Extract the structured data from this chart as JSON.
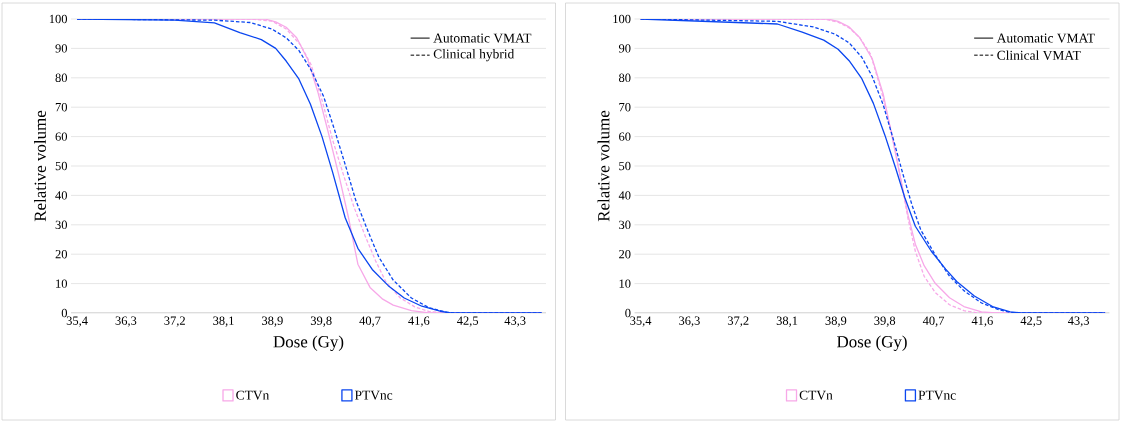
{
  "chart_data": [
    {
      "type": "line",
      "xlabel": "Dose (Gy)",
      "ylabel": "Relative volume",
      "xlim": [
        35.29,
        43.9
      ],
      "ylim": [
        0,
        100
      ],
      "xticks": [
        {
          "value": 35.4,
          "label": "35,4"
        },
        {
          "value": 36.285,
          "label": "36,3"
        },
        {
          "value": 37.17,
          "label": "37,2"
        },
        {
          "value": 38.055,
          "label": "38,1"
        },
        {
          "value": 38.94,
          "label": "38,9"
        },
        {
          "value": 39.825,
          "label": "39,8"
        },
        {
          "value": 40.71,
          "label": "40,7"
        },
        {
          "value": 41.595,
          "label": "41,6"
        },
        {
          "value": 42.48,
          "label": "42,5"
        },
        {
          "value": 43.34,
          "label": "43,3"
        }
      ],
      "yticks": [
        0,
        10,
        20,
        30,
        40,
        50,
        60,
        70,
        80,
        90,
        100
      ],
      "grid": "y",
      "legend": "bottom",
      "annotations": [
        "Automatic VMAT",
        "Clinical hybrid"
      ],
      "series": [
        {
          "name": "CTVn",
          "color": "#f7a8e8",
          "line_style": "solid",
          "x": [
            35.4,
            38.8,
            39.0,
            39.19,
            39.38,
            39.58,
            39.77,
            39.97,
            40.16,
            40.32,
            40.49,
            40.71,
            40.94,
            41.13,
            41.46,
            41.78,
            43.82
          ],
          "values": [
            100,
            100,
            99,
            97.2,
            93.6,
            86.3,
            74.8,
            60.2,
            45.7,
            32.4,
            16.6,
            8.7,
            4.7,
            2.7,
            0.8,
            0,
            0
          ]
        },
        {
          "color": "#f7a8e8",
          "line_style": "dashed",
          "x": [
            35.4,
            38.54,
            38.93,
            39.19,
            39.45,
            39.64,
            39.84,
            40.03,
            40.23,
            40.42,
            40.62,
            40.81,
            41.0,
            41.26,
            41.52,
            41.78,
            42.04,
            43.82
          ],
          "values": [
            100,
            100,
            99.3,
            96.6,
            91.2,
            84.5,
            72.4,
            59,
            46.9,
            36,
            26.3,
            17.8,
            10.5,
            5.1,
            2.1,
            0.5,
            0,
            0
          ]
        },
        {
          "name": "PTVnc",
          "color": "#0a46f0",
          "line_style": "solid",
          "x": [
            35.4,
            37.17,
            37.89,
            38.35,
            38.74,
            39.0,
            39.19,
            39.42,
            39.63,
            39.84,
            40.03,
            40.26,
            40.49,
            40.75,
            41.04,
            41.33,
            41.65,
            41.98,
            42.17,
            43.82
          ],
          "values": [
            100,
            99.6,
            98.7,
            95.4,
            93,
            90,
            85.7,
            79.6,
            71,
            60,
            48,
            32.4,
            22,
            14.8,
            9.3,
            5.1,
            2.3,
            0.6,
            0,
            0
          ]
        },
        {
          "color": "#0a46f0",
          "line_style": "dashed",
          "x": [
            35.4,
            37.89,
            38.54,
            38.93,
            39.19,
            39.42,
            39.64,
            39.87,
            40.06,
            40.26,
            40.45,
            40.68,
            40.87,
            41.13,
            41.46,
            41.78,
            42.11,
            42.3,
            43.82
          ],
          "values": [
            100,
            99.6,
            98.8,
            96.6,
            93.6,
            89.3,
            82.7,
            73.6,
            62.7,
            50.5,
            38.4,
            27.5,
            19,
            11.2,
            5.1,
            1.8,
            0.2,
            0,
            0
          ]
        }
      ]
    },
    {
      "type": "line",
      "xlabel": "Dose (Gy)",
      "ylabel": "Relative volume",
      "xlim": [
        35.29,
        43.9
      ],
      "ylim": [
        0,
        100
      ],
      "xticks": [
        {
          "value": 35.4,
          "label": "35,4"
        },
        {
          "value": 36.285,
          "label": "36,3"
        },
        {
          "value": 37.17,
          "label": "37,2"
        },
        {
          "value": 38.055,
          "label": "38,1"
        },
        {
          "value": 38.94,
          "label": "38,9"
        },
        {
          "value": 39.825,
          "label": "39,8"
        },
        {
          "value": 40.71,
          "label": "40,7"
        },
        {
          "value": 41.595,
          "label": "41,6"
        },
        {
          "value": 42.48,
          "label": "42,5"
        },
        {
          "value": 43.34,
          "label": "43,3"
        }
      ],
      "yticks": [
        0,
        10,
        20,
        30,
        40,
        50,
        60,
        70,
        80,
        90,
        100
      ],
      "grid": "y",
      "legend": "bottom",
      "annotations": [
        "Automatic VMAT",
        "Clinical VMAT"
      ],
      "series": [
        {
          "name": "CTVn",
          "color": "#f7a8e8",
          "line_style": "solid",
          "x": [
            35.4,
            38.79,
            38.98,
            39.18,
            39.37,
            39.6,
            39.8,
            39.96,
            40.12,
            40.25,
            40.38,
            40.54,
            40.74,
            41.0,
            41.26,
            41.58,
            41.84,
            43.82
          ],
          "values": [
            100,
            100,
            99.2,
            97.3,
            93.7,
            86.4,
            74.3,
            59.8,
            45.2,
            33.1,
            23.4,
            16.1,
            10.1,
            5.2,
            2.2,
            0.4,
            0,
            0
          ]
        },
        {
          "color": "#f7a8e8",
          "line_style": "dashed",
          "x": [
            35.4,
            38.72,
            38.98,
            39.18,
            39.37,
            39.57,
            39.76,
            39.95,
            40.12,
            40.25,
            40.38,
            40.54,
            40.74,
            41.0,
            41.26,
            41.52,
            43.82
          ],
          "values": [
            100,
            100,
            98.9,
            97,
            93.7,
            88,
            75.8,
            61.5,
            45.2,
            31.9,
            21,
            12.5,
            7,
            2.8,
            0.8,
            0,
            0
          ]
        },
        {
          "name": "PTVnc",
          "color": "#0a46f0",
          "line_style": "solid",
          "x": [
            35.4,
            37.88,
            38.33,
            38.72,
            38.98,
            39.18,
            39.41,
            39.62,
            39.83,
            40.02,
            40.19,
            40.38,
            40.67,
            40.93,
            41.13,
            41.45,
            41.78,
            42.1,
            42.3,
            43.82
          ],
          "values": [
            100,
            98.3,
            95.5,
            92.8,
            89.7,
            85.8,
            79.7,
            71.3,
            60.4,
            49.5,
            39.2,
            29.5,
            21,
            14.9,
            10.7,
            5.8,
            2.2,
            0.4,
            0,
            0
          ]
        },
        {
          "color": "#0a46f0",
          "line_style": "dashed",
          "x": [
            35.4,
            37.88,
            38.53,
            38.92,
            39.18,
            39.41,
            39.6,
            39.8,
            39.99,
            40.15,
            40.32,
            40.48,
            40.74,
            41.0,
            41.26,
            41.58,
            41.91,
            42.17,
            43.82
          ],
          "values": [
            100,
            99.2,
            97.3,
            94.9,
            91.9,
            87,
            80.4,
            70.7,
            58.5,
            47.6,
            36.7,
            28.2,
            19.8,
            12.5,
            7.6,
            3.4,
            1,
            0,
            0
          ]
        }
      ]
    }
  ]
}
